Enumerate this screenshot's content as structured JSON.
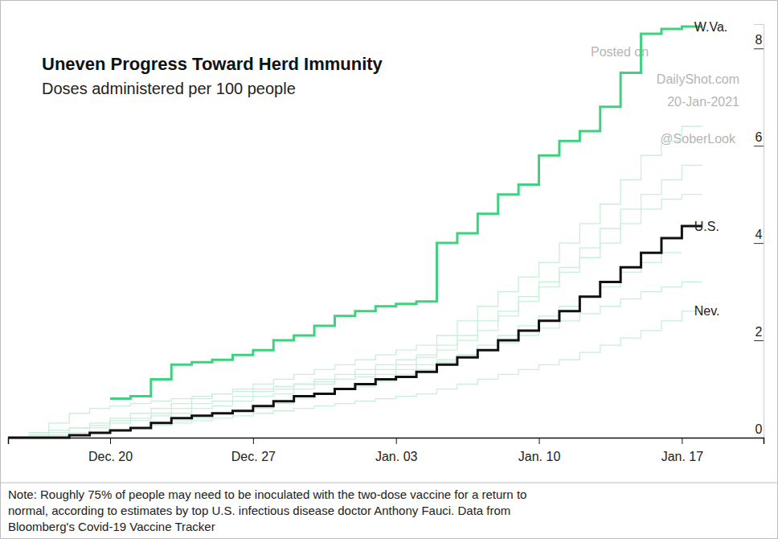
{
  "chart_data": {
    "type": "line",
    "title": "Uneven Progress Toward Herd Immunity",
    "subtitle": "Doses administered per 100 people",
    "annotations": [
      "Posted on",
      "DailyShot.com",
      "20-Jan-2021",
      "@SoberLook"
    ],
    "note": [
      "Note: Roughly 75% of people may need to be inoculated with the two-dose vaccine for a return to",
      "normal, according to estimates by top U.S. infectious disease doctor Anthony Fauci. Data from",
      "Bloomberg's Covid-19 Vaccine Tracker"
    ],
    "categories": [
      null,
      null,
      null,
      null,
      null,
      "Dec. 20",
      null,
      null,
      null,
      null,
      null,
      null,
      "Dec. 27",
      null,
      null,
      null,
      null,
      null,
      null,
      "Jan. 03",
      null,
      null,
      null,
      null,
      null,
      null,
      "Jan. 10",
      null,
      null,
      null,
      null,
      null,
      null,
      "Jan. 17",
      null,
      null,
      null,
      null
    ],
    "ylim": [
      0,
      8.5
    ],
    "yticks": [
      0,
      2,
      4,
      6,
      8
    ],
    "grid": false,
    "series": [
      {
        "color": "#c8efda",
        "values": [
          null,
          0.1,
          0.15,
          0.2,
          0.3,
          0.4,
          0.5,
          0.6,
          0.7,
          0.8,
          0.9,
          1.0,
          1.1,
          1.2,
          1.3,
          1.4,
          1.5,
          1.6,
          1.7,
          1.8,
          1.9,
          2.1,
          2.4,
          2.7,
          3.0,
          3.3,
          3.6,
          4.0,
          4.4,
          4.8,
          5.3,
          5.8,
          6.1,
          6.4,
          6.4,
          null,
          null,
          null
        ]
      },
      {
        "color": "#c8efda",
        "values": [
          null,
          0.05,
          0.1,
          0.2,
          0.25,
          0.35,
          0.4,
          0.5,
          0.6,
          0.7,
          0.75,
          0.85,
          0.95,
          1.0,
          1.1,
          1.2,
          1.3,
          1.4,
          1.5,
          1.6,
          1.7,
          1.9,
          2.1,
          2.4,
          2.6,
          2.9,
          3.2,
          3.5,
          3.9,
          4.3,
          4.7,
          5.0,
          5.3,
          5.6,
          5.6,
          null,
          null,
          null
        ]
      },
      {
        "color": "#c8efda",
        "values": [
          null,
          null,
          0.05,
          0.1,
          0.2,
          0.3,
          0.35,
          0.45,
          0.5,
          0.6,
          0.65,
          0.75,
          0.85,
          0.9,
          1.0,
          1.1,
          1.2,
          1.3,
          1.4,
          1.5,
          1.65,
          1.8,
          2.0,
          2.2,
          2.5,
          2.8,
          3.1,
          3.4,
          3.7,
          4.0,
          4.4,
          4.7,
          4.9,
          5.0,
          5.0,
          null,
          null,
          null
        ]
      },
      {
        "color": "#c8efda",
        "values": [
          null,
          null,
          null,
          0.05,
          0.1,
          0.15,
          0.2,
          0.3,
          0.35,
          0.4,
          0.5,
          0.55,
          0.6,
          0.7,
          0.8,
          0.9,
          1.0,
          1.05,
          1.15,
          1.3,
          1.4,
          1.55,
          1.7,
          1.9,
          2.1,
          2.3,
          2.5,
          2.7,
          2.9,
          3.1,
          3.4,
          3.6,
          3.8,
          3.8,
          null,
          null,
          null,
          null
        ]
      },
      {
        "color": "#c8efda",
        "values": [
          null,
          0.1,
          0.3,
          0.5,
          0.6,
          0.65,
          0.7,
          0.75,
          0.8,
          0.85,
          0.9,
          0.95,
          1.0,
          1.05,
          1.1,
          1.15,
          1.2,
          1.25,
          1.3,
          1.4,
          1.5,
          1.6,
          1.7,
          1.8,
          1.95,
          2.1,
          2.25,
          2.4,
          2.55,
          2.7,
          2.85,
          3.0,
          3.1,
          3.2,
          3.2,
          null,
          null,
          null
        ]
      },
      {
        "name": "Nev.",
        "color": "#c8efda",
        "values": [
          null,
          null,
          null,
          0.05,
          0.1,
          0.15,
          0.2,
          0.25,
          0.3,
          0.35,
          0.4,
          0.45,
          0.5,
          0.55,
          0.6,
          0.65,
          0.7,
          0.75,
          0.8,
          0.85,
          0.9,
          1.0,
          1.1,
          1.2,
          1.3,
          1.4,
          1.5,
          1.6,
          1.75,
          1.9,
          2.05,
          2.2,
          2.4,
          2.6,
          2.6,
          null,
          null,
          null
        ]
      },
      {
        "name": "U.S.",
        "color": "#111111",
        "values": [
          0,
          0,
          0,
          0.05,
          0.1,
          0.15,
          0.2,
          0.3,
          0.4,
          0.45,
          0.5,
          0.55,
          0.65,
          0.75,
          0.85,
          0.9,
          1.0,
          1.1,
          1.2,
          1.25,
          1.35,
          1.5,
          1.65,
          1.8,
          2.0,
          2.2,
          2.4,
          2.6,
          2.9,
          3.2,
          3.5,
          3.8,
          4.1,
          4.35,
          4.35,
          null,
          null,
          null
        ]
      },
      {
        "name": "W.Va.",
        "color": "#3fd27e",
        "values": [
          null,
          null,
          null,
          null,
          null,
          0.8,
          0.85,
          1.2,
          1.5,
          1.55,
          1.6,
          1.7,
          1.8,
          2.0,
          2.1,
          2.3,
          2.5,
          2.6,
          2.7,
          2.75,
          2.8,
          4.0,
          4.2,
          4.6,
          5.0,
          5.2,
          5.8,
          6.1,
          6.3,
          6.8,
          7.5,
          8.3,
          8.4,
          8.45,
          8.45,
          null,
          null,
          null
        ]
      }
    ]
  }
}
